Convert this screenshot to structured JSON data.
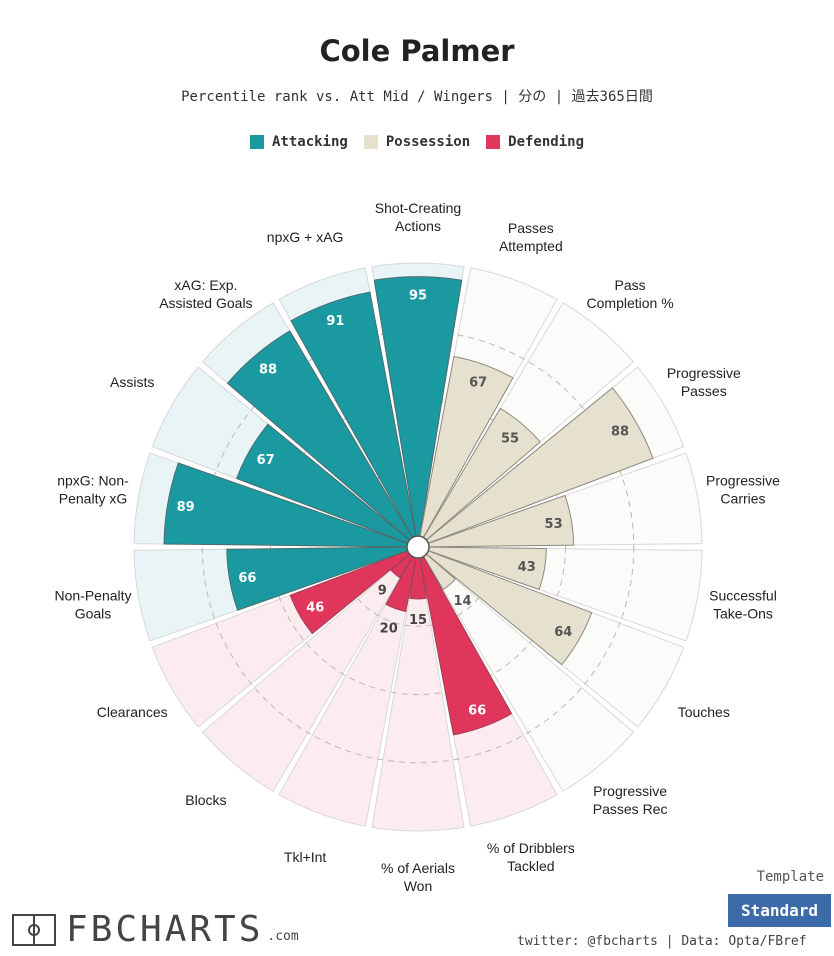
{
  "header": {
    "title": "Cole Palmer",
    "subtitle": "Percentile rank vs. Att Mid / Wingers | 分の | 過去365日間"
  },
  "legend": [
    {
      "label": "Attacking",
      "color": "#1a9aa0"
    },
    {
      "label": "Possession",
      "color": "#e6e1cf"
    },
    {
      "label": "Defending",
      "color": "#e0365c"
    }
  ],
  "colors": {
    "attacking_bar": "#1a9aa0",
    "attacking_bg": "#e8f4f5",
    "possession_bar": "#e6e1cf",
    "possession_bg": "#fbfbf9",
    "defending_bar": "#e0365c",
    "defending_bg": "#fdecef"
  },
  "chart_data": {
    "type": "radar-bar",
    "title": "Cole Palmer",
    "subtitle": "Percentile rank vs. Att Mid / Wingers | 分の | 過去365日間",
    "rlim": [
      0,
      100
    ],
    "gridlines": [
      25,
      50,
      75
    ],
    "categories": [
      {
        "label": "Shot-Creating\nActions",
        "group": "Attacking",
        "value": 95
      },
      {
        "label": "Passes\nAttempted",
        "group": "Possession",
        "value": 67
      },
      {
        "label": "Pass\nCompletion %",
        "group": "Possession",
        "value": 55
      },
      {
        "label": "Progressive\nPasses",
        "group": "Possession",
        "value": 88
      },
      {
        "label": "Progressive\nCarries",
        "group": "Possession",
        "value": 53
      },
      {
        "label": "Successful\nTake-Ons",
        "group": "Possession",
        "value": 43
      },
      {
        "label": "Touches",
        "group": "Possession",
        "value": 64
      },
      {
        "label": "Progressive\nPasses Rec",
        "group": "Possession",
        "value": 14
      },
      {
        "label": "% of Dribblers\nTackled",
        "group": "Defending",
        "value": 66
      },
      {
        "label": "% of Aerials\nWon",
        "group": "Defending",
        "value": 15
      },
      {
        "label": "Tkl+Int",
        "group": "Defending",
        "value": 20
      },
      {
        "label": "Blocks",
        "group": "Defending",
        "value": 9
      },
      {
        "label": "Clearances",
        "group": "Defending",
        "value": 46
      },
      {
        "label": "Non-Penalty\nGoals",
        "group": "Attacking",
        "value": 66
      },
      {
        "label": "npxG: Non-\nPenalty xG",
        "group": "Attacking",
        "value": 89
      },
      {
        "label": "Assists",
        "group": "Attacking",
        "value": 67
      },
      {
        "label": "xAG: Exp.\nAssisted Goals",
        "group": "Attacking",
        "value": 88
      },
      {
        "label": "npxG + xAG",
        "group": "Attacking",
        "value": 91
      }
    ]
  },
  "footer": {
    "template_label": "Template",
    "template_button": "Standard",
    "credit": "twitter: @fbcharts | Data: Opta/FBref",
    "logo_text": "FBCHARTS",
    "logo_suffix": ".com"
  }
}
